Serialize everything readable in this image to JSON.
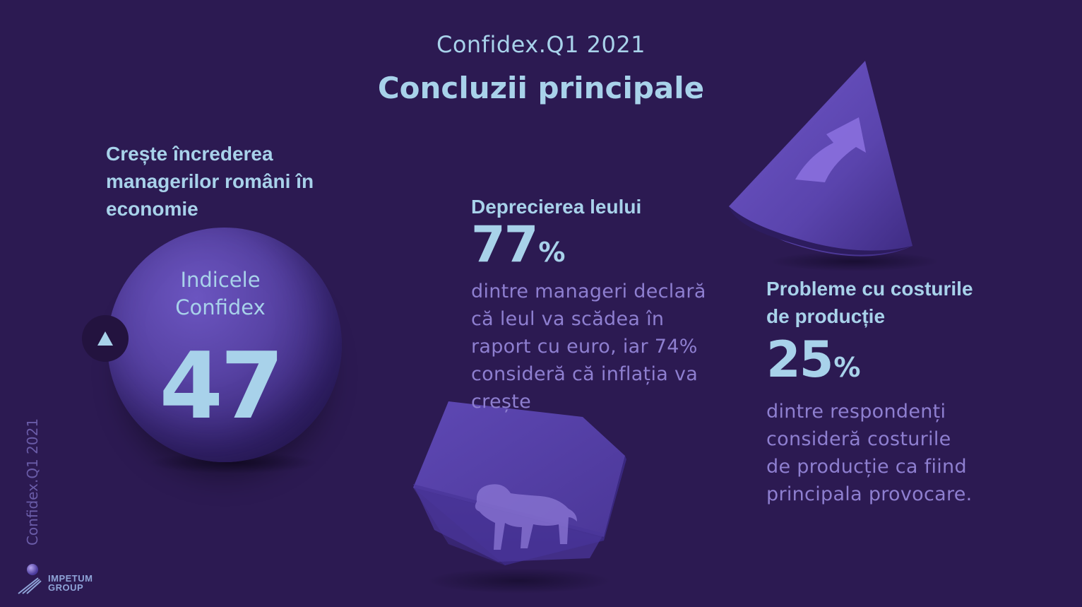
{
  "header": {
    "brand_line": "Confidex.Q1 2021",
    "title": "Concluzii principale"
  },
  "confidence": {
    "heading": [
      "Crește încrederea",
      "managerilor români în",
      "economie"
    ],
    "index_label": [
      "Indicele",
      "Confidex"
    ],
    "index_value": "47",
    "trend_icon": "triangle-up-icon"
  },
  "leu": {
    "heading": "Deprecierea leului",
    "value": "77",
    "unit": "%",
    "description": [
      "dintre manageri declară",
      "că leul va scădea în",
      "raport cu euro, iar 74%",
      "consideră că inflația va",
      "crește"
    ]
  },
  "costs": {
    "heading": [
      "Probleme cu costurile",
      "de producție"
    ],
    "value": "25",
    "unit": "%",
    "description": [
      "dintre respondenți",
      "consideră costurile",
      "de producție ca fiind",
      "principala provocare."
    ]
  },
  "footer": {
    "vertical_brand": "Confidex.Q1 2021",
    "logo_text": [
      "IMPETUM",
      "GROUP"
    ]
  },
  "colors": {
    "background": "#2c1a52",
    "accent_text": "#a8d2ea",
    "muted_text": "#8e7fd0",
    "shape_purple": "#5b45b0"
  }
}
